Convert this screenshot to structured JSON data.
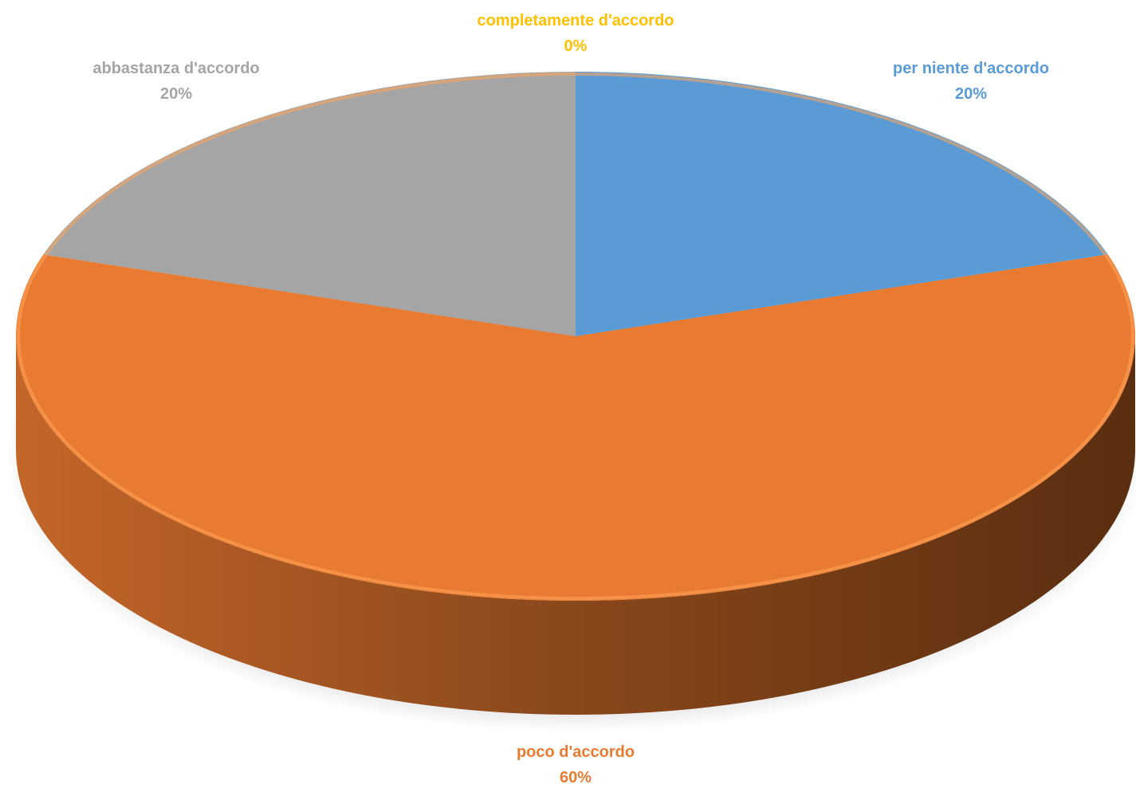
{
  "chart_data": {
    "type": "pie",
    "style": "3d",
    "legend": "none",
    "slices": [
      {
        "name": "per niente d'accordo",
        "value": 20,
        "label": "20%",
        "color": "#5B9BD5",
        "side_color": "#3A6C9A"
      },
      {
        "name": "poco d'accordo",
        "value": 60,
        "label": "60%",
        "color": "#E87B31",
        "side_color": "#B5561B"
      },
      {
        "name": "abbastanza d'accordo",
        "value": 20,
        "label": "20%",
        "color": "#A5A5A5",
        "side_color": "#777777"
      },
      {
        "name": "completamente d'accordo",
        "value": 0,
        "label": "0%",
        "color": "#FFC000",
        "side_color": "#B38600"
      }
    ]
  }
}
